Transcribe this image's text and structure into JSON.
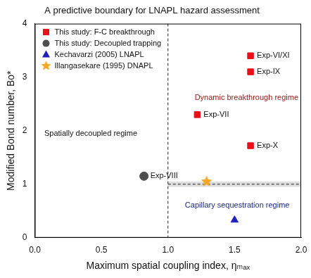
{
  "chart_data": {
    "type": "scatter",
    "title": "A predictive boundary for LNAPL hazard assessment",
    "x_label": "Maximum spatial coupling index, ηₘₐₓ",
    "y_label": "Modified Bond number, Bo*",
    "xlim": [
      0,
      2
    ],
    "ylim": [
      0,
      4
    ],
    "xticks": [
      {
        "value": 0,
        "label": "0.0"
      },
      0.5,
      {
        "value": 1,
        "label": "1.0"
      },
      1.5,
      {
        "value": 2,
        "label": "2.0"
      }
    ],
    "yticks": [
      0,
      1,
      2,
      3,
      4
    ],
    "grid": false,
    "legend": "upper left",
    "series": [
      {
        "name": "This study: F-C breakthrough",
        "color": "#e8101a",
        "marker": "square",
        "x": [
          1.62,
          1.62,
          1.22,
          1.62
        ],
        "values": [
          3.4,
          3.1,
          2.3,
          1.72
        ],
        "labels": [
          "Exp-VI/XI",
          "Exp-IX",
          "Exp-VII",
          "Exp-X"
        ]
      },
      {
        "name": "This study: Decoupled trapping",
        "color": "#4d4d4d",
        "marker": "circle",
        "x": [
          0.82
        ],
        "values": [
          1.15
        ],
        "labels": [
          "Exp-VIII"
        ]
      },
      {
        "name": "Kechavarzi (2005) LNAPL",
        "color": "#1f1fbf",
        "marker": "triangle",
        "x": [
          1.5
        ],
        "values": [
          0.33
        ]
      },
      {
        "name": "Illangasekare (1995) DNAPL",
        "color": "#f5a623",
        "marker": "star",
        "x": [
          1.29
        ],
        "values": [
          1.05
        ]
      }
    ],
    "reference_lines": [
      {
        "axis": "x",
        "value": 1,
        "line_style": "dashed"
      },
      {
        "axis": "y",
        "value": 1,
        "x_from": 1,
        "band": [
          0.95,
          1.05
        ],
        "line_style": "dashed"
      }
    ],
    "annotations": [
      {
        "text": "Spatially decoupled regime",
        "x": 0.42,
        "y": 1.95,
        "color": "#111111"
      },
      {
        "text": "Dynamic breakthrough regime",
        "x": 1.6,
        "y": 2.62,
        "color": "#a01818"
      },
      {
        "text": "Capillary sequestration regime",
        "x": 1.52,
        "y": 0.6,
        "color": "#1a2a8a"
      }
    ]
  }
}
